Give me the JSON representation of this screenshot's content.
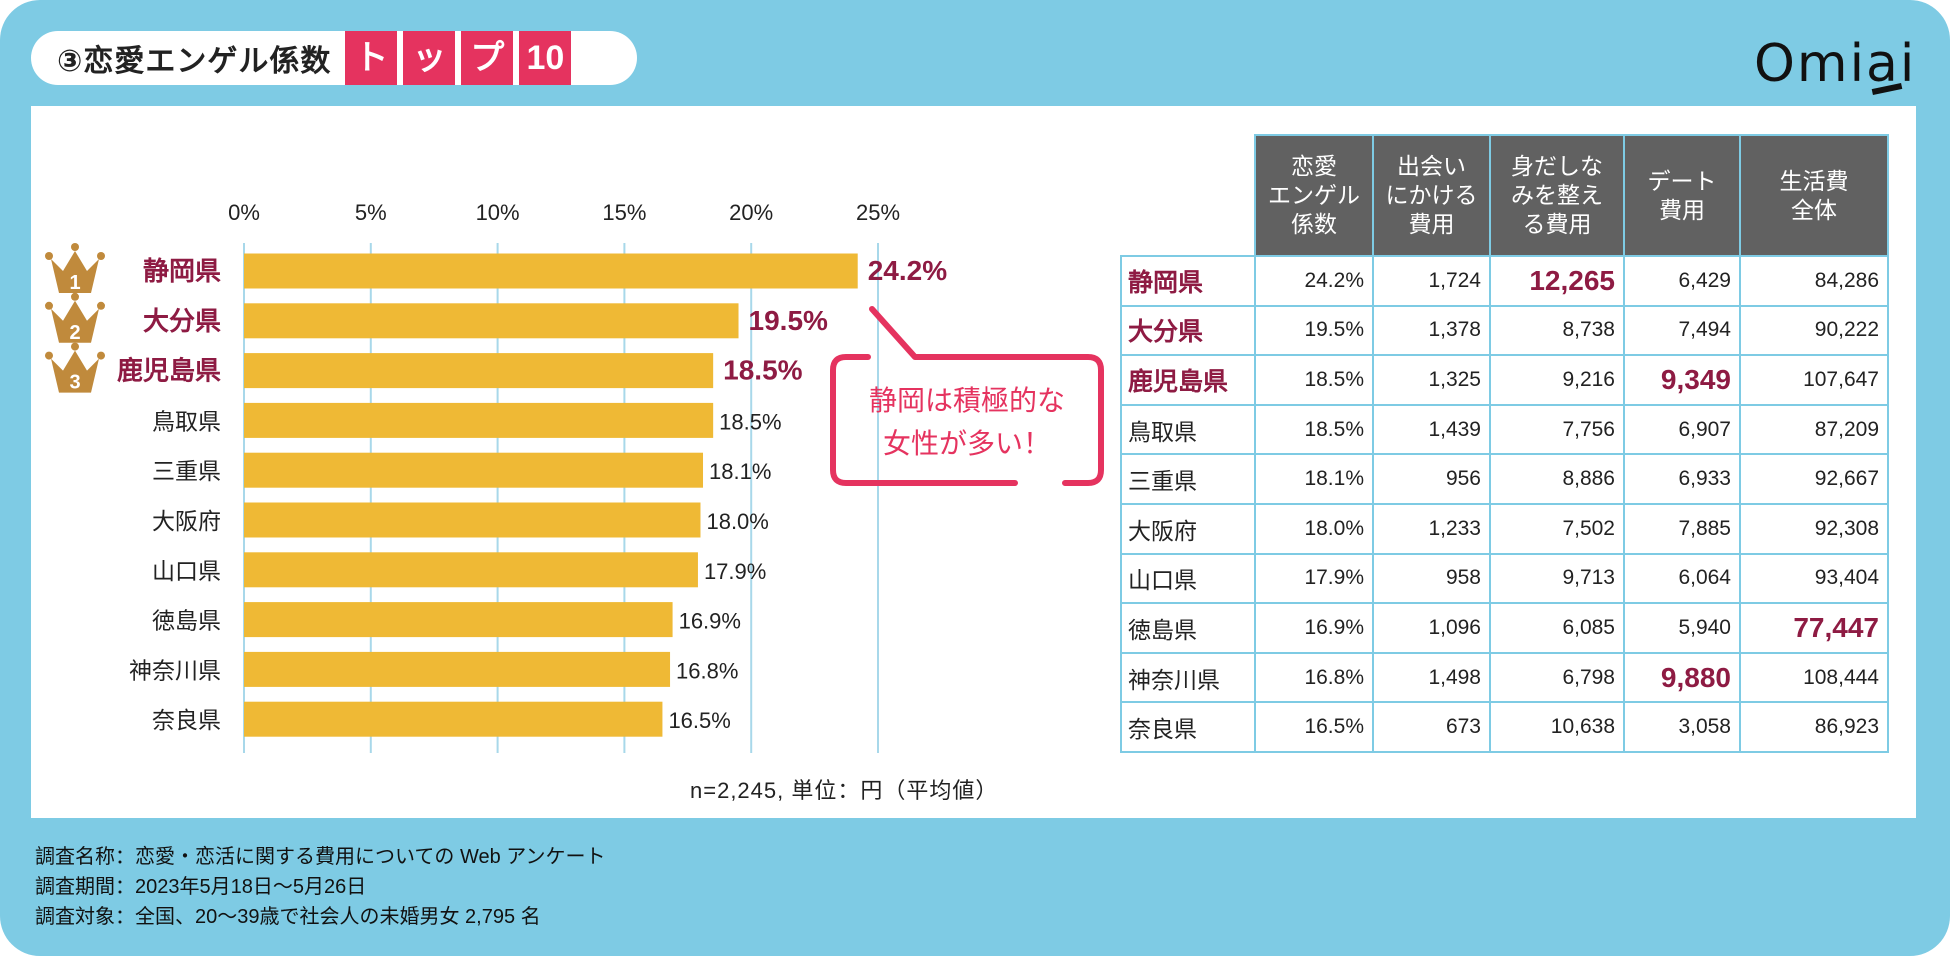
{
  "header": {
    "title": "③恋愛エンゲル係数",
    "title_highlight": [
      "ト",
      "ッ",
      "プ",
      "10"
    ],
    "logo": "Omiai"
  },
  "colors": {
    "background": "#7ecbe4",
    "accent_pink": "#e5335f",
    "top3_maroon": "#8e1b43",
    "bar": "#efb935",
    "crown": "#c08a3c",
    "table_header": "#616161"
  },
  "chart_data": {
    "type": "bar",
    "orientation": "horizontal",
    "categories": [
      "静岡県",
      "大分県",
      "鹿児島県",
      "鳥取県",
      "三重県",
      "大阪府",
      "山口県",
      "徳島県",
      "神奈川県",
      "奈良県"
    ],
    "values": [
      24.2,
      19.5,
      18.5,
      18.5,
      18.1,
      18.0,
      17.9,
      16.9,
      16.8,
      16.5
    ],
    "value_labels": [
      "24.2%",
      "19.5%",
      "18.5%",
      "18.5%",
      "18.1%",
      "18.0%",
      "17.9%",
      "16.9%",
      "16.8%",
      "16.5%"
    ],
    "ranks": [
      "1",
      "2",
      "3"
    ],
    "xlim": [
      0,
      25
    ],
    "x_ticks": [
      0,
      5,
      10,
      15,
      20,
      25
    ],
    "x_tick_labels": [
      "0%",
      "5%",
      "10%",
      "15%",
      "20%",
      "25%"
    ],
    "grid": true,
    "callout": [
      "静岡は積極的な",
      "女性が多い！"
    ]
  },
  "table": {
    "headers": [
      [
        "恋愛",
        "エンゲル",
        "係数"
      ],
      [
        "出会い",
        "にかける",
        "費用"
      ],
      [
        "身だしな",
        "みを整え",
        "る費用"
      ],
      [
        "デート",
        "費用"
      ],
      [
        "生活費",
        "全体"
      ]
    ],
    "rows": [
      {
        "pref": "静岡県",
        "top": true,
        "cells": [
          "24.2%",
          "1,724",
          "12,265",
          "6,429",
          "84,286"
        ],
        "highlight": [
          2
        ]
      },
      {
        "pref": "大分県",
        "top": true,
        "cells": [
          "19.5%",
          "1,378",
          "8,738",
          "7,494",
          "90,222"
        ],
        "highlight": []
      },
      {
        "pref": "鹿児島県",
        "top": true,
        "cells": [
          "18.5%",
          "1,325",
          "9,216",
          "9,349",
          "107,647"
        ],
        "highlight": [
          3
        ]
      },
      {
        "pref": "鳥取県",
        "top": false,
        "cells": [
          "18.5%",
          "1,439",
          "7,756",
          "6,907",
          "87,209"
        ],
        "highlight": []
      },
      {
        "pref": "三重県",
        "top": false,
        "cells": [
          "18.1%",
          "956",
          "8,886",
          "6,933",
          "92,667"
        ],
        "highlight": []
      },
      {
        "pref": "大阪府",
        "top": false,
        "cells": [
          "18.0%",
          "1,233",
          "7,502",
          "7,885",
          "92,308"
        ],
        "highlight": []
      },
      {
        "pref": "山口県",
        "top": false,
        "cells": [
          "17.9%",
          "958",
          "9,713",
          "6,064",
          "93,404"
        ],
        "highlight": []
      },
      {
        "pref": "徳島県",
        "top": false,
        "cells": [
          "16.9%",
          "1,096",
          "6,085",
          "5,940",
          "77,447"
        ],
        "highlight": [
          4
        ]
      },
      {
        "pref": "神奈川県",
        "top": false,
        "cells": [
          "16.8%",
          "1,498",
          "6,798",
          "9,880",
          "108,444"
        ],
        "highlight": [
          3
        ]
      },
      {
        "pref": "奈良県",
        "top": false,
        "cells": [
          "16.5%",
          "673",
          "10,638",
          "3,058",
          "86,923"
        ],
        "highlight": []
      }
    ]
  },
  "note": "n=2,245, 単位：円（平均値）",
  "footer": [
    "調査名称：恋愛・恋活に関する費用についての Web アンケート",
    "調査期間：2023年5月18日〜5月26日",
    "調査対象：全国、20〜39歳で社会人の未婚男女 2,795 名"
  ]
}
